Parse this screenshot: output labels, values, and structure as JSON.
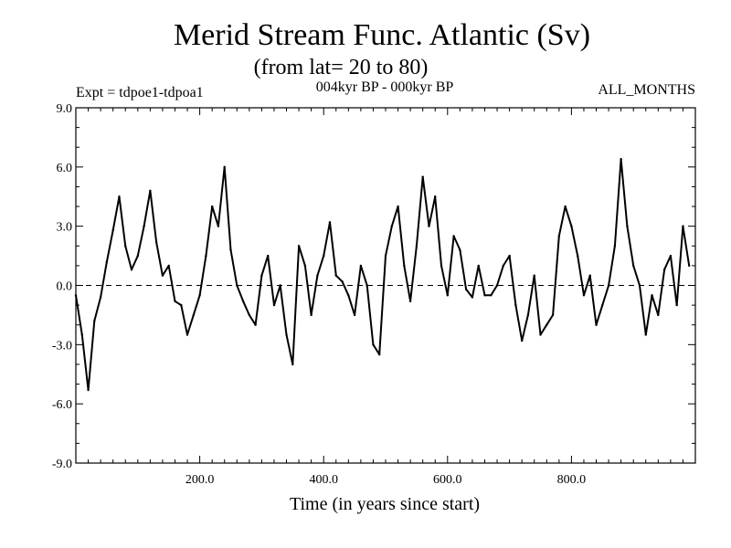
{
  "chart_data": {
    "type": "line",
    "title": "Merid Stream Func. Atlantic (Sv)",
    "subtitle": "(from lat= 20 to 80)",
    "experiment": "Expt = tdpoe1-tdpoa1",
    "period": "004kyr BP - 000kyr BP",
    "months": "ALL_MONTHS",
    "xlabel": "Time (in years since start)",
    "ylabel": "",
    "xlim": [
      0,
      1000
    ],
    "ylim": [
      -9.0,
      9.0
    ],
    "xticks": [
      200,
      400,
      600,
      800
    ],
    "xtick_labels": [
      "200.0",
      "400.0",
      "600.0",
      "800.0"
    ],
    "yticks": [
      -9.0,
      -6.0,
      -3.0,
      0.0,
      3.0,
      6.0,
      9.0
    ],
    "ytick_labels": [
      "-9.0",
      "-6.0",
      "-3.0",
      "0.0",
      "3.0",
      "6.0",
      "9.0"
    ],
    "zero_line": true,
    "series": [
      {
        "name": "Merid Stream Func. Atlantic",
        "x_start": 0,
        "x_step": 10,
        "values": [
          -0.5,
          -2.5,
          -5.3,
          -1.8,
          -0.6,
          1.2,
          2.8,
          4.5,
          2.0,
          0.8,
          1.5,
          3.0,
          4.8,
          2.2,
          0.5,
          1.0,
          -0.8,
          -1.0,
          -2.5,
          -1.5,
          -0.5,
          1.5,
          4.0,
          3.0,
          6.0,
          1.8,
          0.0,
          -0.8,
          -1.5,
          -2.0,
          0.5,
          1.5,
          -1.0,
          0.0,
          -2.5,
          -4.0,
          2.0,
          1.0,
          -1.5,
          0.5,
          1.5,
          3.2,
          0.5,
          0.2,
          -0.5,
          -1.5,
          1.0,
          0.0,
          -3.0,
          -3.5,
          1.5,
          3.0,
          4.0,
          1.0,
          -0.8,
          2.0,
          5.5,
          3.0,
          4.5,
          1.0,
          -0.5,
          2.5,
          1.8,
          -0.2,
          -0.6,
          1.0,
          -0.5,
          -0.5,
          0.0,
          1.0,
          1.5,
          -1.0,
          -2.8,
          -1.5,
          0.5,
          -2.5,
          -2.0,
          -1.5,
          2.5,
          4.0,
          3.0,
          1.5,
          -0.5,
          0.5,
          -2.0,
          -1.0,
          0.0,
          2.0,
          6.4,
          3.0,
          1.0,
          0.0,
          -2.5,
          -0.5,
          -1.5,
          0.8,
          1.5,
          -1.0,
          3.0,
          1.0
        ]
      }
    ]
  }
}
